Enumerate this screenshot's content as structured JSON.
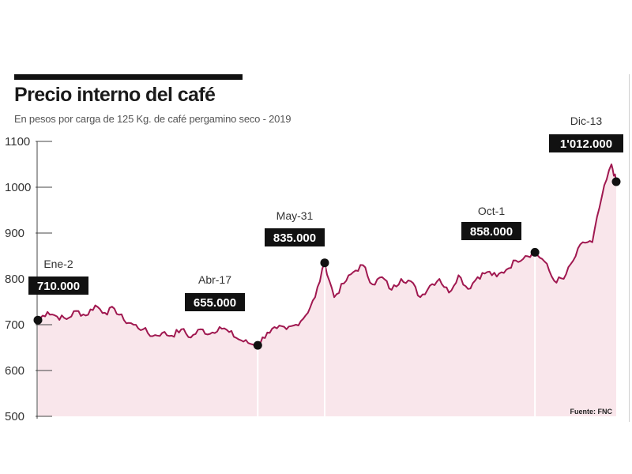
{
  "chart_data": {
    "type": "area",
    "title": "Precio interno del café",
    "subtitle": "En pesos por carga de 125 Kg. de café pergamino seco - 2019",
    "source": "Fuente: FNC",
    "ylim": [
      500,
      1100
    ],
    "yticks": [
      500,
      600,
      700,
      800,
      900,
      1000,
      1100
    ],
    "grid": false,
    "colors": {
      "line": "#a01850",
      "fill": "#f9e6eb",
      "marker": "#111111",
      "label_bg": "#111111",
      "label_text": "#ffffff"
    },
    "series": [
      {
        "x_index": [
          0,
          4,
          8,
          12,
          16,
          20,
          24,
          28,
          32,
          36,
          40,
          44,
          48,
          52,
          56,
          60,
          64,
          68,
          72,
          76,
          80,
          84,
          88,
          92,
          96,
          100,
          104,
          108,
          112,
          116,
          120,
          124,
          128,
          132,
          136,
          140,
          144,
          148,
          152,
          156,
          160,
          164,
          168,
          172,
          176,
          180,
          184,
          188,
          192,
          196,
          200,
          204,
          208,
          212,
          216,
          220,
          224,
          228,
          232,
          236,
          240,
          242
        ],
        "values": [
          710,
          728,
          718,
          712,
          730,
          720,
          742,
          726,
          735,
          710,
          700,
          690,
          675,
          682,
          676,
          690,
          672,
          690,
          680,
          695,
          684,
          668,
          660,
          655,
          683,
          692,
          690,
          700,
          720,
          760,
          835,
          760,
          790,
          815,
          830,
          788,
          804,
          776,
          800,
          795,
          760,
          785,
          800,
          770,
          808,
          778,
          804,
          815,
          805,
          820,
          840,
          850,
          858,
          838,
          796,
          800,
          840,
          880,
          880,
          980,
          1050,
          1012
        ]
      }
    ],
    "annotations": [
      {
        "date": "Ene-2",
        "value_label": "710.000",
        "x_index": 0,
        "value": 710
      },
      {
        "date": "Abr-17",
        "value_label": "655.000",
        "x_index": 92,
        "value": 655
      },
      {
        "date": "May-31",
        "value_label": "835.000",
        "x_index": 120,
        "value": 835
      },
      {
        "date": "Oct-1",
        "value_label": "858.000",
        "x_index": 208,
        "value": 858
      },
      {
        "date": "Dic-13",
        "value_label": "1'012.000",
        "x_index": 242,
        "value": 1012
      }
    ]
  }
}
